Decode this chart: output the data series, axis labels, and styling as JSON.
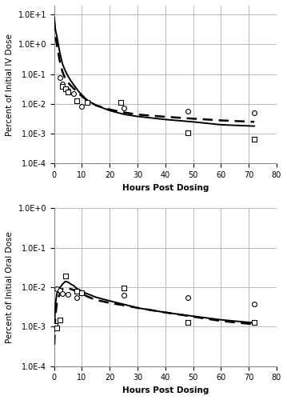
{
  "iv_solid_line": {
    "x": [
      0.05,
      0.2,
      0.5,
      1,
      2,
      3,
      4,
      5,
      6,
      7,
      8,
      9,
      10,
      12,
      15,
      20,
      25,
      30,
      40,
      50,
      60,
      72
    ],
    "y": [
      8.0,
      5.0,
      3.0,
      1.8,
      0.55,
      0.22,
      0.13,
      0.085,
      0.06,
      0.044,
      0.033,
      0.025,
      0.02,
      0.013,
      0.009,
      0.006,
      0.0045,
      0.0038,
      0.003,
      0.0025,
      0.002,
      0.0018
    ]
  },
  "iv_dashed_line": {
    "x": [
      0.05,
      0.2,
      0.5,
      1,
      2,
      3,
      4,
      5,
      6,
      7,
      8,
      9,
      10,
      12,
      15,
      20,
      25,
      30,
      40,
      50,
      60,
      72
    ],
    "y": [
      6.0,
      3.5,
      1.8,
      0.9,
      0.28,
      0.12,
      0.07,
      0.052,
      0.041,
      0.033,
      0.027,
      0.022,
      0.018,
      0.013,
      0.009,
      0.0065,
      0.0052,
      0.0044,
      0.0037,
      0.0032,
      0.0028,
      0.0025
    ]
  },
  "iv_circles": {
    "x": [
      2,
      3,
      5,
      7,
      10,
      25,
      48,
      72
    ],
    "y": [
      0.075,
      0.048,
      0.028,
      0.022,
      0.0085,
      0.0075,
      0.0058,
      0.005
    ]
  },
  "iv_squares": {
    "x": [
      3,
      4,
      5,
      8,
      12,
      24,
      48,
      72
    ],
    "y": [
      0.038,
      0.033,
      0.025,
      0.013,
      0.011,
      0.011,
      0.0011,
      0.00065
    ]
  },
  "oral_solid_line": {
    "x": [
      0.05,
      0.2,
      0.5,
      1,
      2,
      3,
      4,
      5,
      6,
      7,
      8,
      10,
      12,
      15,
      20,
      25,
      30,
      40,
      50,
      60,
      72
    ],
    "y": [
      0.00075,
      0.0015,
      0.004,
      0.007,
      0.0095,
      0.012,
      0.014,
      0.0135,
      0.012,
      0.011,
      0.0095,
      0.0078,
      0.0068,
      0.0056,
      0.0045,
      0.0037,
      0.003,
      0.0023,
      0.00185,
      0.0015,
      0.00125
    ]
  },
  "oral_dashed_line": {
    "x": [
      0.05,
      0.2,
      0.5,
      1,
      2,
      3,
      4,
      5,
      6,
      7,
      8,
      10,
      12,
      15,
      20,
      25,
      30,
      40,
      50,
      60,
      72
    ],
    "y": [
      0.00035,
      0.0007,
      0.002,
      0.004,
      0.007,
      0.009,
      0.0095,
      0.0095,
      0.009,
      0.0085,
      0.008,
      0.007,
      0.0058,
      0.0048,
      0.004,
      0.0035,
      0.003,
      0.0023,
      0.0018,
      0.0014,
      0.00115
    ]
  },
  "oral_circles": {
    "x": [
      1,
      2,
      3,
      5,
      8,
      25,
      48,
      72
    ],
    "y": [
      0.0092,
      0.0082,
      0.0068,
      0.0065,
      0.0055,
      0.0062,
      0.0055,
      0.0038
    ]
  },
  "oral_squares": {
    "x": [
      0.5,
      1,
      2,
      4,
      8,
      10,
      25,
      48,
      72
    ],
    "y": [
      0.00105,
      0.00095,
      0.0015,
      0.019,
      0.0078,
      0.0073,
      0.0095,
      0.0013,
      0.0013
    ]
  },
  "iv_ylabel": "Percent of Initial IV Dose",
  "oral_ylabel": "Percent of Initial Oral Dose",
  "xlabel": "Hours Post Dosing",
  "iv_ylim": [
    0.0001,
    20
  ],
  "oral_ylim": [
    0.0001,
    1.0
  ],
  "xlim": [
    0,
    80
  ],
  "yticks_iv": [
    0.0001,
    0.001,
    0.01,
    0.1,
    1.0,
    10.0
  ],
  "yticks_iv_labels": [
    "1.0E-4",
    "1.0E-3",
    "1.0E-2",
    "1.0E-1",
    "1.0E+0",
    "1.0E+1"
  ],
  "yticks_oral": [
    0.0001,
    0.001,
    0.01,
    0.1,
    1.0
  ],
  "yticks_oral_labels": [
    "1.0E-4",
    "1.0E-3",
    "1.0E-2",
    "1.0E-1",
    "1.0E+0"
  ],
  "xticks": [
    0,
    10,
    20,
    30,
    40,
    50,
    60,
    70,
    80
  ],
  "line_color": "#000000",
  "marker_color": "#000000",
  "grid_color": "#b0b0b0",
  "bg_color": "#ffffff",
  "fontsize_label": 7.5,
  "fontsize_tick": 7,
  "linewidth_solid": 1.4,
  "linewidth_dashed": 1.8,
  "marker_size": 18
}
